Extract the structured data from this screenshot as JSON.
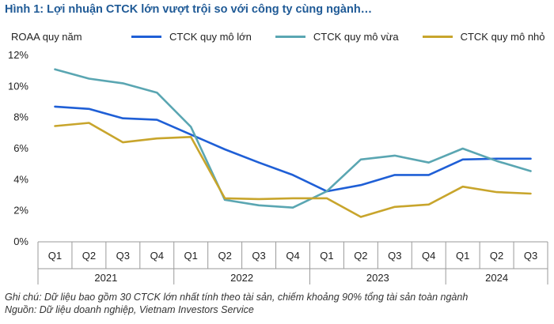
{
  "title": "Hình 1: Lợi nhuận CTCK lớn vượt trội so với công ty cùng ngành…",
  "chart_data": {
    "type": "line",
    "ylabel": "ROAA quy năm",
    "ylim": [
      0,
      12
    ],
    "yticks": [
      0,
      2,
      4,
      6,
      8,
      10,
      12
    ],
    "ytick_labels": [
      "0%",
      "2%",
      "4%",
      "6%",
      "8%",
      "10%",
      "12%"
    ],
    "categories": [
      "Q1",
      "Q2",
      "Q3",
      "Q4",
      "Q1",
      "Q2",
      "Q3",
      "Q4",
      "Q1",
      "Q2",
      "Q3",
      "Q4",
      "Q1",
      "Q2",
      "Q3"
    ],
    "groups": [
      {
        "label": "2021",
        "count": 4
      },
      {
        "label": "2022",
        "count": 4
      },
      {
        "label": "2023",
        "count": 4
      },
      {
        "label": "2024",
        "count": 3
      }
    ],
    "grid": false,
    "legend_position": "top",
    "series": [
      {
        "name": "CTCK quy mô lớn",
        "color": "#1f5fd6",
        "values": [
          8.7,
          8.55,
          7.95,
          7.85,
          6.9,
          5.95,
          5.1,
          4.3,
          3.25,
          3.65,
          4.3,
          4.3,
          5.3,
          5.35,
          5.35
        ]
      },
      {
        "name": "CTCK quy mô vừa",
        "color": "#5aa6b2",
        "values": [
          11.1,
          10.5,
          10.2,
          9.6,
          7.4,
          2.7,
          2.35,
          2.2,
          3.25,
          5.3,
          5.55,
          5.1,
          6.0,
          5.2,
          4.55
        ]
      },
      {
        "name": "CTCK quy mô nhỏ",
        "color": "#c8a52c",
        "values": [
          7.45,
          7.65,
          6.4,
          6.65,
          6.75,
          2.8,
          2.75,
          2.8,
          2.8,
          1.6,
          2.25,
          2.4,
          3.55,
          3.2,
          3.1
        ]
      }
    ]
  },
  "notes": {
    "line1": "Ghi chú: Dữ liệu bao gồm 30 CTCK lớn nhất tính theo tài sản, chiếm khoảng 90% tổng tài sản toàn ngành",
    "line2": "Nguồn: Dữ liệu doanh nghiệp, Vietnam Investors Service"
  }
}
